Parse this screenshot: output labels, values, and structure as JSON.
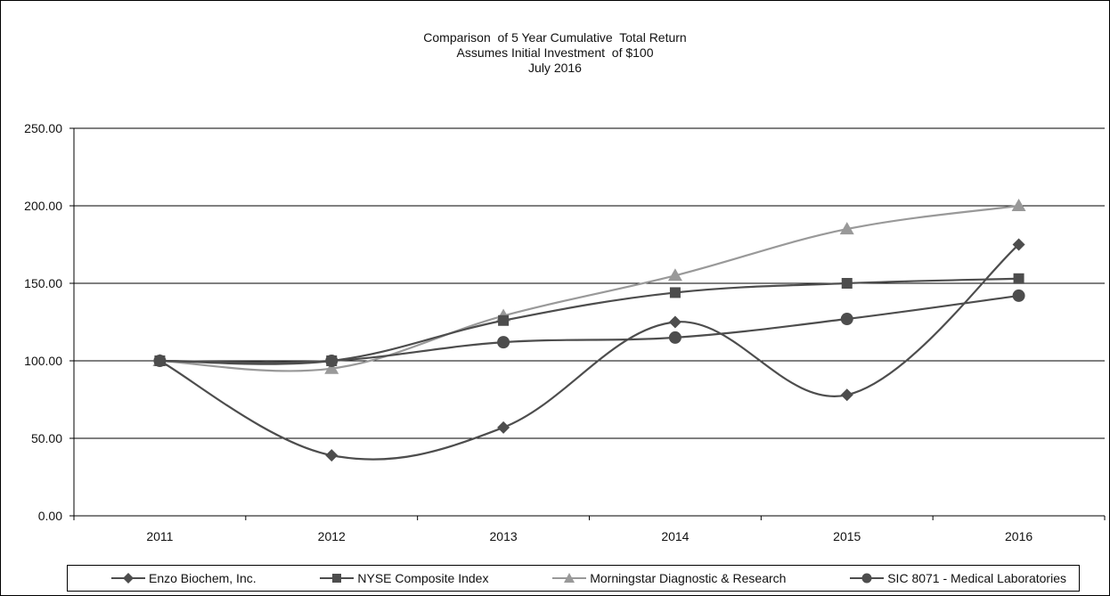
{
  "chart_data": {
    "type": "line",
    "title_lines": [
      "Comparison  of 5 Year Cumulative  Total Return",
      "Assumes Initial Investment  of $100",
      "July 2016"
    ],
    "xlabel": "",
    "ylabel": "",
    "categories": [
      "2011",
      "2012",
      "2013",
      "2014",
      "2015",
      "2016"
    ],
    "ylim": [
      0,
      250
    ],
    "yticks": [
      "0.00",
      "50.00",
      "100.00",
      "150.00",
      "200.00",
      "250.00"
    ],
    "grid": "horizontal",
    "legend_position": "bottom",
    "series": [
      {
        "name": "Enzo Biochem, Inc.",
        "marker": "diamond",
        "color": "#4d4d4d",
        "values": [
          100,
          39,
          57,
          125,
          78,
          175
        ]
      },
      {
        "name": "NYSE Composite Index",
        "marker": "square",
        "color": "#4d4d4d",
        "values": [
          100,
          100,
          126,
          144,
          150,
          153
        ]
      },
      {
        "name": "Morningstar Diagnostic & Research",
        "marker": "triangle",
        "color": "#999999",
        "values": [
          100,
          95,
          129,
          155,
          185,
          200
        ]
      },
      {
        "name": "SIC 8071 - Medical Laboratories",
        "marker": "circle",
        "color": "#4d4d4d",
        "values": [
          100,
          100,
          112,
          115,
          127,
          142
        ]
      }
    ]
  }
}
